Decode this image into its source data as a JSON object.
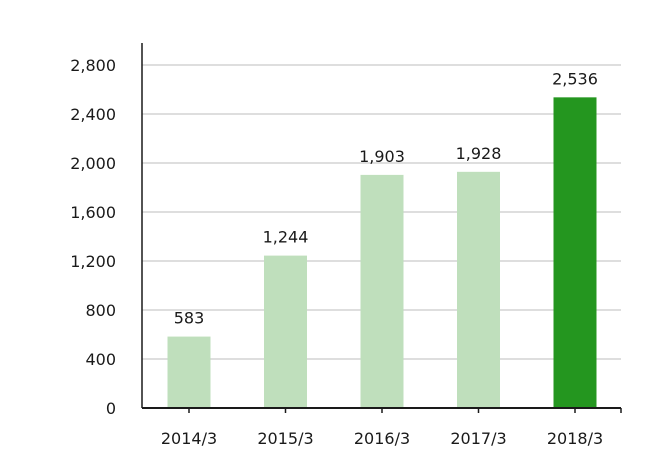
{
  "chart_data": {
    "type": "bar",
    "categories": [
      "2014/3",
      "2015/3",
      "2016/3",
      "2017/3",
      "2018/3"
    ],
    "values": [
      583,
      1244,
      1903,
      1928,
      2536
    ],
    "data_labels": [
      "583",
      "1,244",
      "1,903",
      "1,928",
      "2,536"
    ],
    "title": "",
    "xlabel": "",
    "ylabel": "",
    "ylim": [
      0,
      2800
    ],
    "yticks": [
      0,
      400,
      800,
      1200,
      1600,
      2000,
      2400,
      2800
    ],
    "ytick_labels": [
      "0",
      "400",
      "800",
      "1,200",
      "1,600",
      "2,000",
      "2,400",
      "2,800"
    ],
    "grid": true,
    "legend": "none",
    "colors": {
      "bar": "#bfdfbc",
      "highlight_bar": "#24961f",
      "grid": "#bdbdbd",
      "axis": "#1a1a1a"
    },
    "highlight_index": 4
  }
}
